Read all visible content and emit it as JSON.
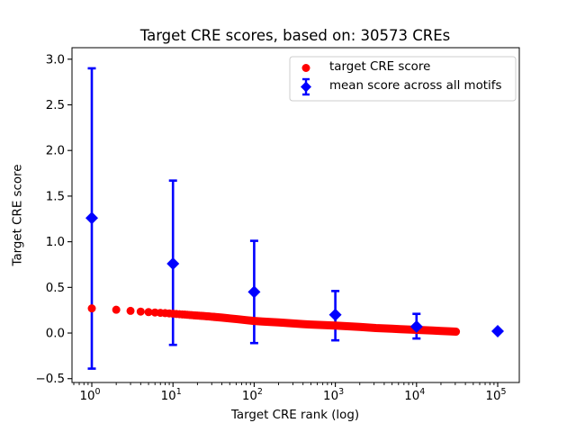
{
  "chart_data": {
    "type": "scatter",
    "title": "Target CRE scores, based on: 30573 CREs",
    "xlabel": "Target CRE rank (log)",
    "ylabel": "Target CRE score",
    "x_scale": "log",
    "grid": false,
    "axes": {
      "xlim_log10": [
        -0.244,
        5.266
      ],
      "ylim": [
        -0.542,
        3.126
      ],
      "x_tick_values": [
        1,
        10,
        100,
        1000,
        10000,
        100000
      ],
      "x_tick_labels": [
        "10^0",
        "10^1",
        "10^2",
        "10^3",
        "10^4",
        "10^5"
      ],
      "y_tick_values": [
        -0.5,
        0.0,
        0.5,
        1.0,
        1.5,
        2.0,
        2.5,
        3.0
      ],
      "y_tick_labels": [
        "−0.5",
        "0.0",
        "0.5",
        "1.0",
        "1.5",
        "2.0",
        "2.5",
        "3.0"
      ]
    },
    "legend": {
      "position": "upper right",
      "items": [
        {
          "label": "target CRE score",
          "marker": "red-circle"
        },
        {
          "label": "mean score across all motifs",
          "marker": "blue-diamond-errorbar"
        }
      ]
    },
    "series": [
      {
        "name": "target CRE score",
        "type": "scatter",
        "marker": "circle",
        "color": "#ff0000",
        "points": [
          [
            1,
            0.27
          ],
          [
            2,
            0.255
          ],
          [
            3,
            0.243
          ],
          [
            4,
            0.235
          ],
          [
            5,
            0.229
          ],
          [
            6,
            0.225
          ],
          [
            7,
            0.221
          ],
          [
            8,
            0.218
          ],
          [
            9,
            0.215
          ],
          [
            10,
            0.212
          ],
          [
            13,
            0.204
          ],
          [
            16,
            0.198
          ],
          [
            20,
            0.191
          ],
          [
            25,
            0.185
          ],
          [
            32,
            0.177
          ],
          [
            40,
            0.169
          ],
          [
            50,
            0.16
          ],
          [
            63,
            0.151
          ],
          [
            79,
            0.141
          ],
          [
            100,
            0.132
          ],
          [
            126,
            0.127
          ],
          [
            158,
            0.121
          ],
          [
            200,
            0.116
          ],
          [
            251,
            0.11
          ],
          [
            316,
            0.104
          ],
          [
            398,
            0.098
          ],
          [
            501,
            0.093
          ],
          [
            631,
            0.089
          ],
          [
            794,
            0.085
          ],
          [
            1000,
            0.081
          ],
          [
            1259,
            0.076
          ],
          [
            1585,
            0.071
          ],
          [
            1995,
            0.066
          ],
          [
            2512,
            0.06
          ],
          [
            3162,
            0.055
          ],
          [
            3981,
            0.051
          ],
          [
            5012,
            0.047
          ],
          [
            6310,
            0.043
          ],
          [
            7943,
            0.039
          ],
          [
            10000,
            0.035
          ],
          [
            12589,
            0.031
          ],
          [
            15849,
            0.027
          ],
          [
            19953,
            0.023
          ],
          [
            25119,
            0.019
          ],
          [
            30573,
            0.015
          ]
        ]
      },
      {
        "name": "mean score across all motifs",
        "type": "errorbar",
        "marker": "diamond",
        "color": "#0000ff",
        "x": [
          1,
          10,
          100,
          1000,
          10000,
          100000
        ],
        "mean": [
          1.26,
          0.76,
          0.45,
          0.2,
          0.07,
          0.02
        ],
        "err_low": [
          -0.39,
          -0.13,
          -0.11,
          -0.08,
          -0.06,
          0.02
        ],
        "err_high": [
          2.9,
          1.67,
          1.01,
          0.46,
          0.21,
          0.02
        ]
      }
    ]
  },
  "colors": {
    "red": "#ff0000",
    "blue": "#0000ff",
    "axis": "#000000",
    "legend_border": "#cccccc",
    "background": "#ffffff"
  }
}
